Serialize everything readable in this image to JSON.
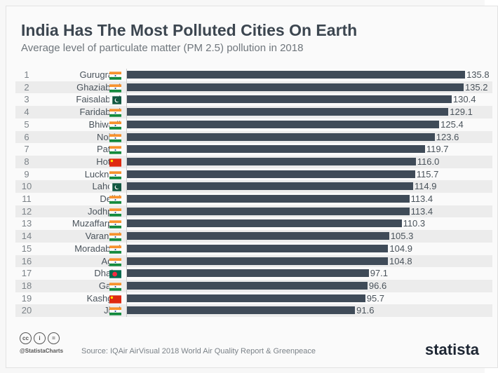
{
  "chart_data": {
    "type": "bar",
    "title": "India Has The Most Polluted Cities On Earth",
    "subtitle": "Average level of particulate matter (PM 2.5) pollution in 2018",
    "categories": [
      "Gurugram",
      "Ghaziabad",
      "Faisalabad",
      "Faridabad",
      "Bhiwadi",
      "Noida",
      "Patna",
      "Hotan",
      "Lucknow",
      "Lahore",
      "Delhi",
      "Jodhpur",
      "Muzaffarpur",
      "Varanasi",
      "Moradabad",
      "Agra",
      "Dhaka",
      "Gaya",
      "Kashgar",
      "Jind"
    ],
    "countries": [
      "india",
      "india",
      "pakistan",
      "india",
      "india",
      "india",
      "india",
      "china",
      "india",
      "pakistan",
      "india",
      "india",
      "india",
      "india",
      "india",
      "india",
      "bangladesh",
      "india",
      "china",
      "india"
    ],
    "values": [
      135.8,
      135.2,
      130.4,
      129.1,
      125.4,
      123.6,
      119.7,
      116.0,
      115.7,
      114.9,
      113.4,
      113.4,
      110.3,
      105.3,
      104.9,
      104.8,
      97.1,
      96.6,
      95.7,
      91.6
    ],
    "xlabel": "",
    "ylabel": "",
    "xlim": [
      0,
      140
    ],
    "orientation": "horizontal"
  },
  "footer": {
    "handle": "@StatistaCharts",
    "source": "Source: IQAir AirVisual 2018 World Air Quality Report & Greenpeace",
    "logo": "statista",
    "cc": [
      "cc",
      "i",
      "="
    ]
  },
  "colors": {
    "bar": "#3f4b58"
  }
}
